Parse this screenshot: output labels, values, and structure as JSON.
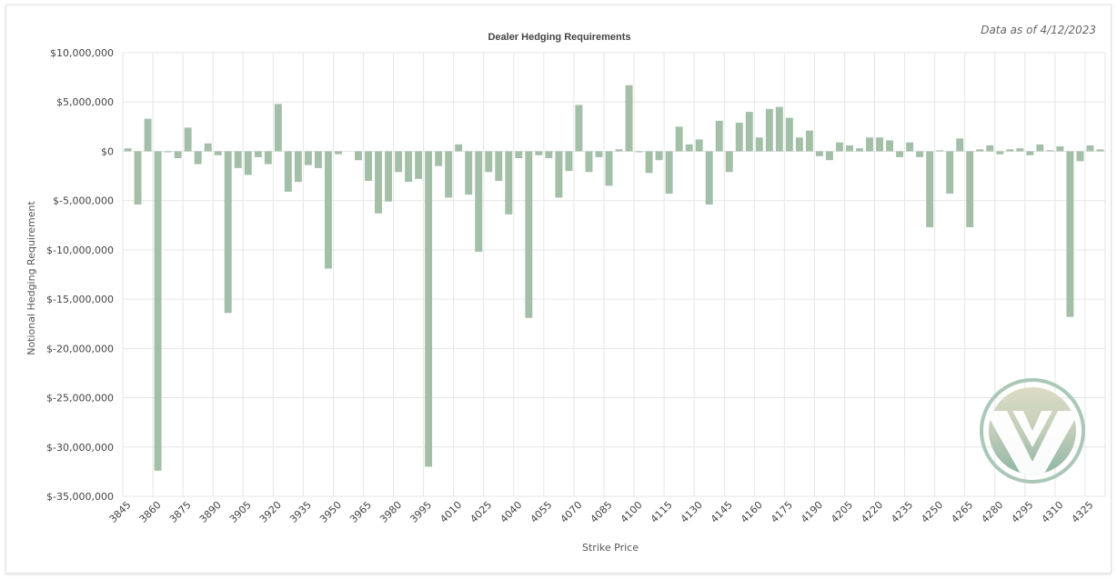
{
  "as_of_text": "Data as of 4/12/2023",
  "colors": {
    "bar": "#a3bfa8",
    "logo_ring": "#aac7b8",
    "logo_top": "#d5d6c0",
    "logo_bottom": "#8fb6a5"
  },
  "logo": {
    "icon": "vee-logo-icon"
  },
  "chart_data": {
    "type": "bar",
    "title": "Dealer Hedging Requirements",
    "xlabel": "Strike Price",
    "ylabel": "Notional Hedging Requirement",
    "ylim": [
      -35000000,
      10000000
    ],
    "yticks": [
      10000000,
      5000000,
      0,
      -5000000,
      -10000000,
      -15000000,
      -20000000,
      -25000000,
      -30000000,
      -35000000
    ],
    "ytick_labels": [
      "$10,000,000",
      "$5,000,000",
      "$0",
      "$-5,000,000",
      "$-10,000,000",
      "$-15,000,000",
      "$-20,000,000",
      "$-25,000,000",
      "$-30,000,000",
      "$-35,000,000"
    ],
    "xtick_labels": [
      "3845",
      "3860",
      "3875",
      "3890",
      "3905",
      "3920",
      "3935",
      "3950",
      "3965",
      "3980",
      "3995",
      "4010",
      "4025",
      "4040",
      "4055",
      "4070",
      "4085",
      "4100",
      "4115",
      "4130",
      "4145",
      "4160",
      "4175",
      "4190",
      "4205",
      "4220",
      "4235",
      "4250",
      "4265",
      "4280",
      "4295",
      "4310",
      "4325"
    ],
    "grid": true,
    "legend": "none",
    "categories": [
      3845,
      3850,
      3855,
      3860,
      3865,
      3870,
      3875,
      3880,
      3885,
      3890,
      3895,
      3900,
      3905,
      3910,
      3915,
      3920,
      3925,
      3930,
      3935,
      3940,
      3945,
      3950,
      3955,
      3960,
      3965,
      3970,
      3975,
      3980,
      3985,
      3990,
      3995,
      4000,
      4005,
      4010,
      4015,
      4020,
      4025,
      4030,
      4035,
      4040,
      4045,
      4050,
      4055,
      4060,
      4065,
      4070,
      4075,
      4080,
      4085,
      4090,
      4095,
      4100,
      4105,
      4110,
      4115,
      4120,
      4125,
      4130,
      4135,
      4140,
      4145,
      4150,
      4155,
      4160,
      4165,
      4170,
      4175,
      4180,
      4185,
      4190,
      4195,
      4200,
      4205,
      4210,
      4215,
      4220,
      4225,
      4230,
      4235,
      4240,
      4245,
      4250,
      4255,
      4260,
      4265,
      4270,
      4275,
      4280,
      4285,
      4290,
      4295,
      4300,
      4305,
      4310,
      4315,
      4320,
      4325,
      4330
    ],
    "values": [
      300000,
      -5400000,
      3300000,
      -32400000,
      -100000,
      -700000,
      2400000,
      -1300000,
      800000,
      -400000,
      -16400000,
      -1700000,
      -2400000,
      -600000,
      -1300000,
      4800000,
      -4100000,
      -3100000,
      -1400000,
      -1700000,
      -11900000,
      -300000,
      0,
      -900000,
      -3000000,
      -6300000,
      -5100000,
      -2100000,
      -3100000,
      -2800000,
      -32000000,
      -1500000,
      -4700000,
      700000,
      -4400000,
      -10200000,
      -2100000,
      -3000000,
      -6400000,
      -700000,
      -16900000,
      -400000,
      -700000,
      -4700000,
      -2000000,
      4700000,
      -2100000,
      -600000,
      -3500000,
      200000,
      6700000,
      -100000,
      -2200000,
      -900000,
      -4300000,
      2500000,
      700000,
      1200000,
      -5400000,
      3100000,
      -2100000,
      2900000,
      4000000,
      1400000,
      4300000,
      4500000,
      3400000,
      1400000,
      2100000,
      -500000,
      -900000,
      900000,
      600000,
      300000,
      1400000,
      1400000,
      1100000,
      -600000,
      900000,
      -600000,
      -7700000,
      100000,
      -4300000,
      1300000,
      -7700000,
      200000,
      600000,
      -300000,
      200000,
      300000,
      -400000,
      700000,
      100000,
      500000,
      -16800000,
      -1000000,
      600000,
      200000
    ]
  }
}
